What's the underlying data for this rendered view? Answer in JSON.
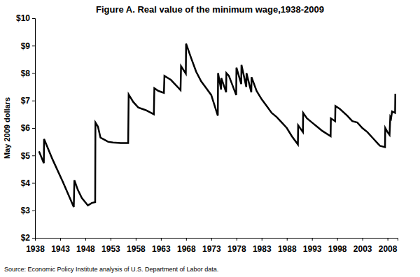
{
  "chart_data": {
    "type": "line",
    "title": "Figure A. Real value of the minimum wage,1938-2009",
    "y_label": "May 2009 dollars",
    "source": "Source: Economic Policy Institute analysis of U.S. Department of Labor data.",
    "color": "#000000",
    "grid": false,
    "xlim": [
      1938,
      2010
    ],
    "xticks": [
      1938,
      1943,
      1948,
      1953,
      1958,
      1963,
      1968,
      1973,
      1978,
      1983,
      1988,
      1993,
      1998,
      2003,
      2008
    ],
    "ylim": [
      2,
      10
    ],
    "yticks": [
      {
        "value": 2,
        "label": "$2"
      },
      {
        "value": 3,
        "label": "$3"
      },
      {
        "value": 4,
        "label": "$4"
      },
      {
        "value": 5,
        "label": "$5"
      },
      {
        "value": 6,
        "label": "$6"
      },
      {
        "value": 7,
        "label": "$7"
      },
      {
        "value": 8,
        "label": "$8"
      },
      {
        "value": 9,
        "label": "$9"
      },
      {
        "value": 10,
        "label": "$10"
      }
    ],
    "x": [
      1938.8,
      1939.75,
      1939.8,
      1941.5,
      1943.5,
      1945.7,
      1945.82,
      1946.5,
      1947.3,
      1948.5,
      1949.3,
      1949.95,
      1950.0,
      1950.5,
      1951.0,
      1951.5,
      1952.5,
      1953.5,
      1955,
      1956.5,
      1956.6,
      1957.5,
      1958.5,
      1960,
      1961.6,
      1961.7,
      1962.5,
      1963.6,
      1963.7,
      1965,
      1966.9,
      1967.0,
      1967.95,
      1968.0,
      1969,
      1970,
      1971,
      1972,
      1973,
      1974.3,
      1974.35,
      1974.95,
      1975.0,
      1975.95,
      1976.0,
      1976.5,
      1977.95,
      1978.0,
      1978.95,
      1979.0,
      1979.95,
      1980.0,
      1980.95,
      1981.0,
      1982,
      1983,
      1984,
      1985,
      1986,
      1987,
      1988,
      1989,
      1990.2,
      1990.25,
      1991.2,
      1991.25,
      1992,
      1993,
      1994,
      1995,
      1996.7,
      1996.75,
      1997.6,
      1997.65,
      1998.5,
      2000,
      2001,
      2002,
      2003,
      2004,
      2005,
      2006,
      2006.5,
      2007.5,
      2007.55,
      2008,
      2008.4,
      2008.55,
      2008.7,
      2008.9,
      2009.5,
      2009.55
    ],
    "values": [
      5.15,
      4.72,
      5.6,
      4.85,
      4.05,
      3.12,
      4.1,
      3.75,
      3.45,
      3.18,
      3.27,
      3.3,
      6.2,
      6.05,
      5.65,
      5.6,
      5.5,
      5.47,
      5.45,
      5.45,
      7.22,
      6.95,
      6.75,
      6.65,
      6.5,
      7.45,
      7.35,
      7.28,
      7.9,
      7.75,
      7.38,
      8.25,
      7.98,
      9.07,
      8.55,
      8.05,
      7.7,
      7.45,
      7.2,
      6.45,
      8.0,
      7.4,
      7.82,
      7.3,
      8.0,
      7.9,
      7.2,
      8.2,
      7.6,
      8.3,
      7.5,
      8.0,
      7.3,
      7.85,
      7.35,
      7.05,
      6.8,
      6.55,
      6.4,
      6.2,
      6.0,
      5.7,
      5.4,
      6.1,
      5.85,
      6.55,
      6.35,
      6.2,
      6.05,
      5.9,
      5.7,
      6.35,
      6.25,
      6.8,
      6.7,
      6.45,
      6.25,
      6.2,
      6.0,
      5.85,
      5.65,
      5.45,
      5.35,
      5.3,
      6.0,
      5.85,
      5.75,
      6.4,
      6.35,
      6.6,
      6.55,
      7.25
    ]
  }
}
